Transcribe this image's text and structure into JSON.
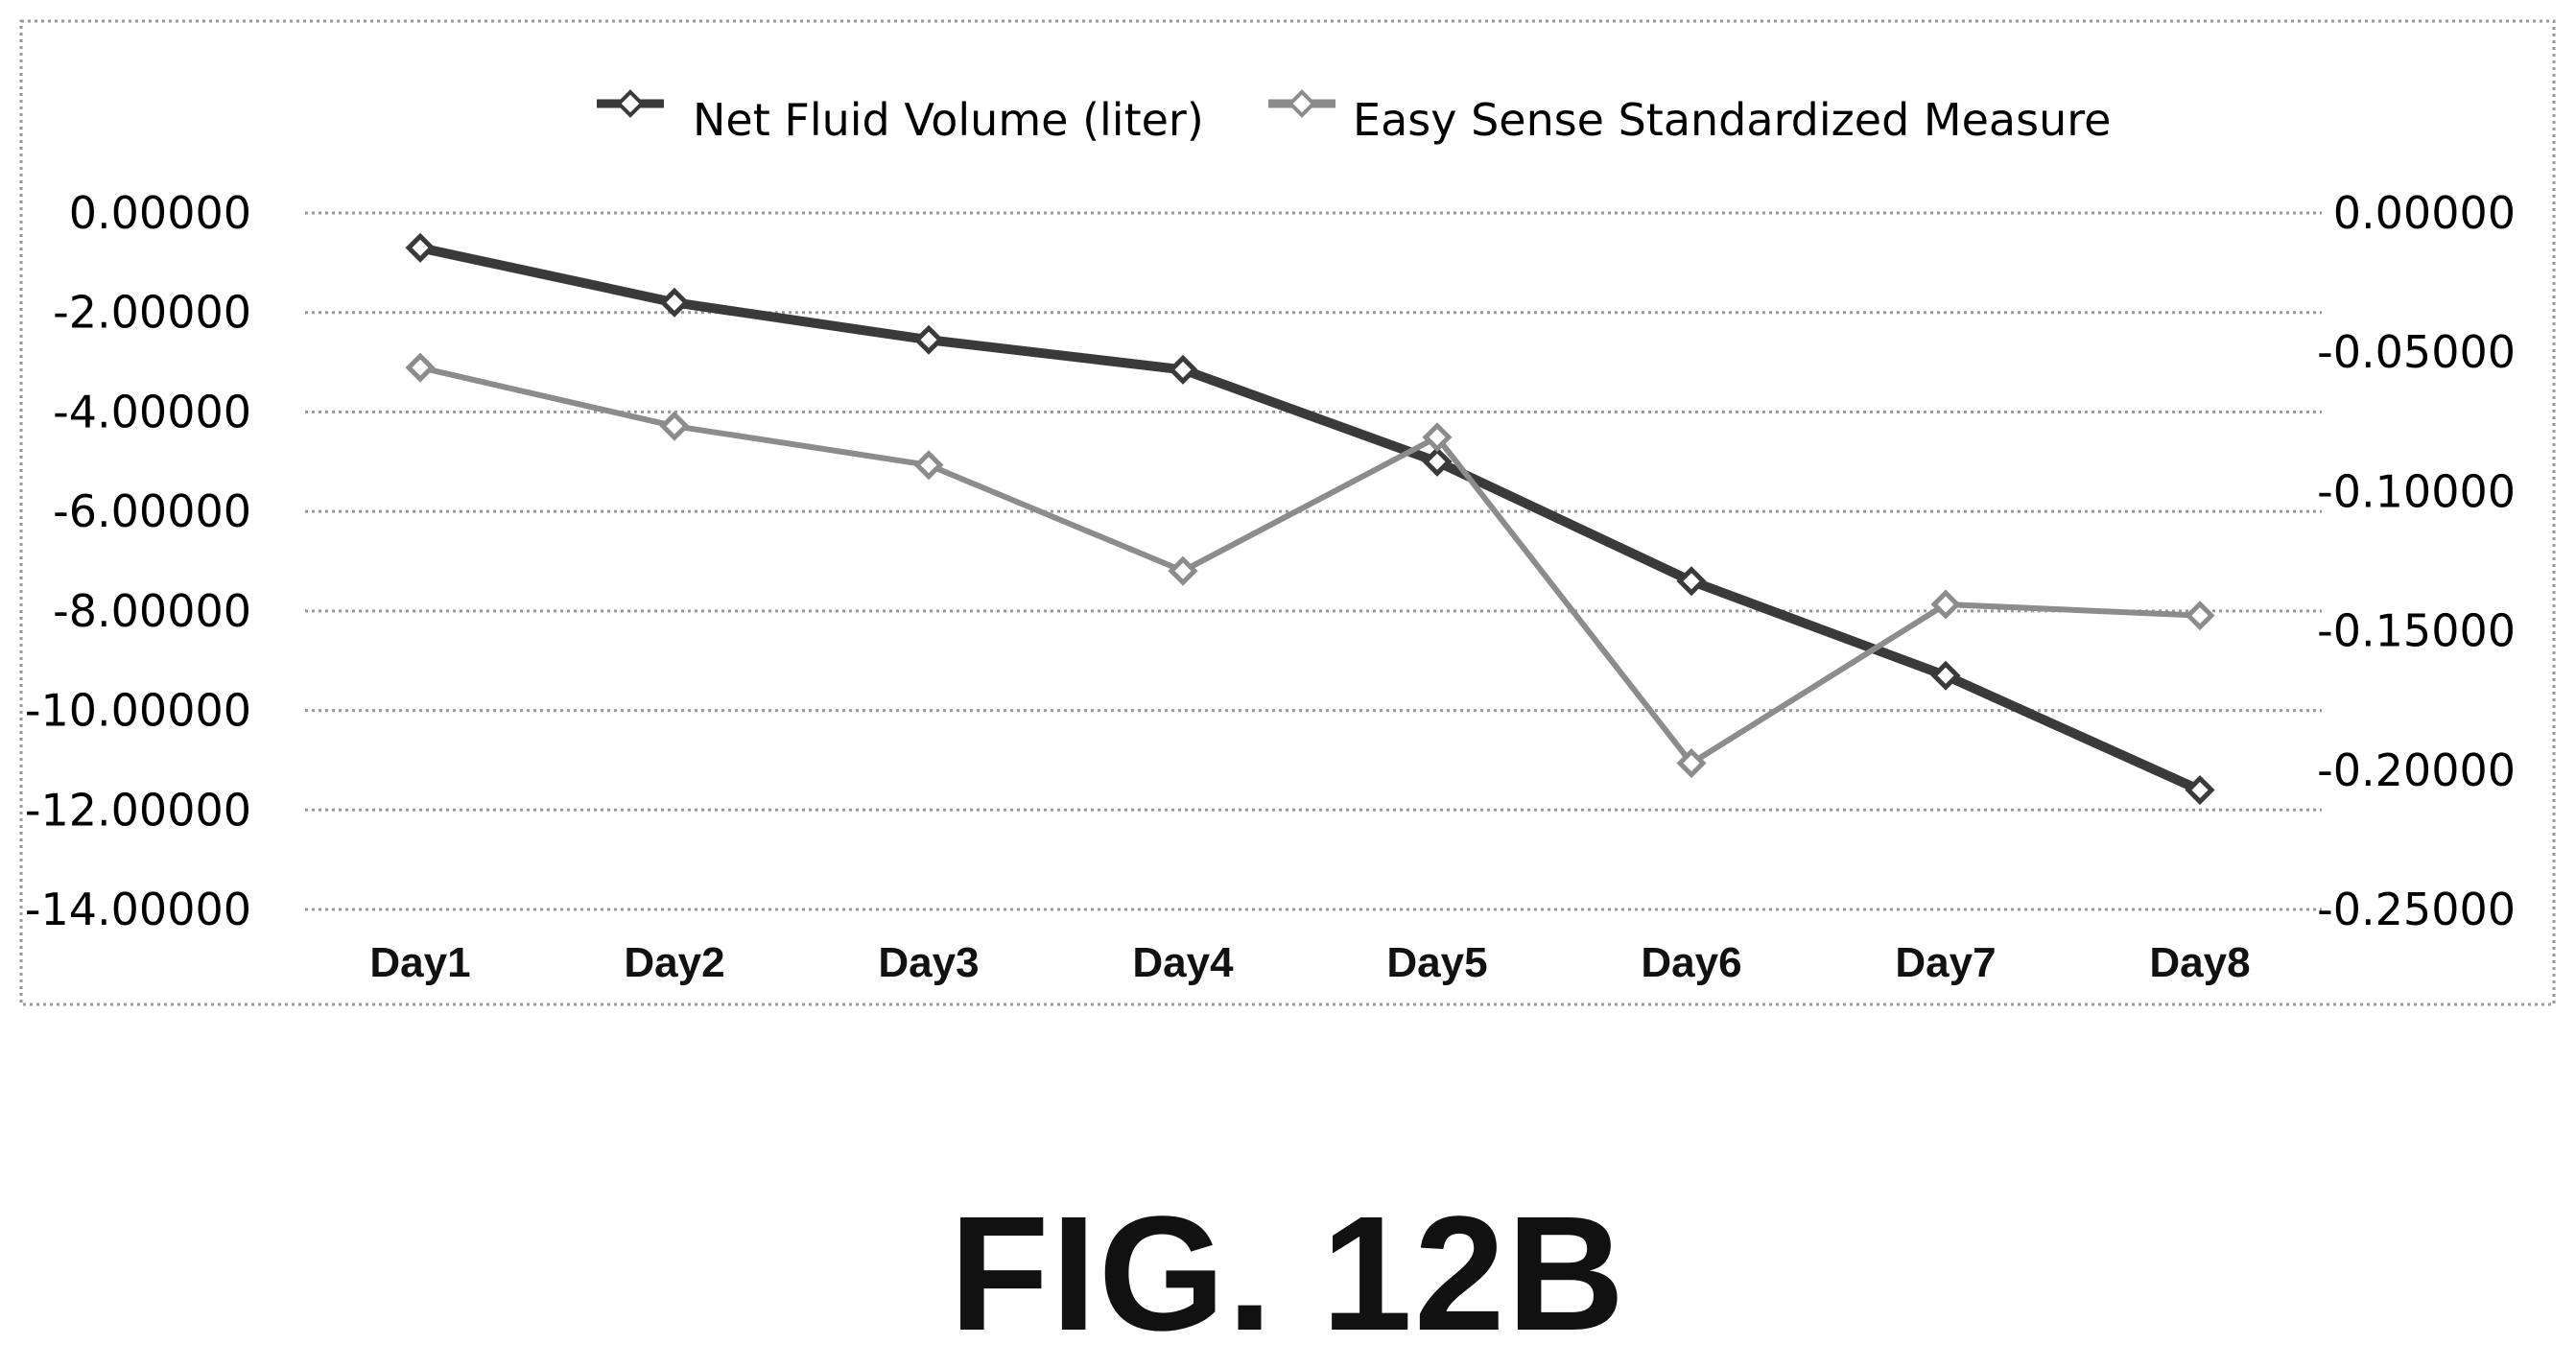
{
  "caption": "FIG. 12B",
  "chart_data": {
    "type": "line",
    "title": "",
    "categories": [
      "Day1",
      "Day2",
      "Day3",
      "Day4",
      "Day5",
      "Day6",
      "Day7",
      "Day8"
    ],
    "legend": {
      "placement": "top-center"
    },
    "grid": true,
    "axes": {
      "left": {
        "label": "",
        "ylim": [
          -14,
          0
        ],
        "ticks": [
          0,
          -2,
          -4,
          -6,
          -8,
          -10,
          -12,
          -14
        ],
        "tick_labels": [
          "0.00000",
          "-2.00000",
          "-4.00000",
          "-6.00000",
          "-8.00000",
          "-10.00000",
          "-12.00000",
          "-14.00000"
        ]
      },
      "right": {
        "label": "",
        "ylim": [
          -0.25,
          0
        ],
        "ticks": [
          0,
          -0.05,
          -0.1,
          -0.15,
          -0.2,
          -0.25
        ],
        "tick_labels": [
          "0.00000",
          "-0.05000",
          "-0.10000",
          "-0.15000",
          "-0.20000",
          "-0.25000"
        ]
      }
    },
    "series": [
      {
        "name": "Net Fluid Volume (liter)",
        "axis": "left",
        "color": "#3a3a3a",
        "values": [
          -0.7,
          -1.8,
          -2.55,
          -3.15,
          -5.0,
          -7.4,
          -9.3,
          -11.6
        ]
      },
      {
        "name": "Easy Sense Standardized Measure",
        "axis": "right",
        "color": "#8c8c8c",
        "values": [
          -0.0555,
          -0.0765,
          -0.0905,
          -0.1285,
          -0.0805,
          -0.1975,
          -0.1405,
          -0.1445
        ]
      }
    ]
  }
}
